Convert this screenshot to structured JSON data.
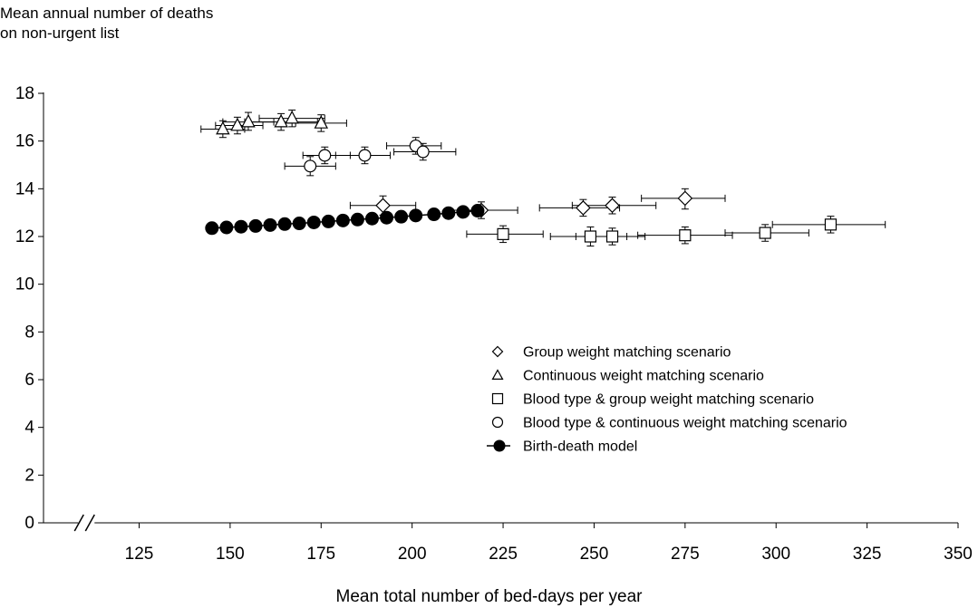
{
  "chart_data": {
    "type": "scatter",
    "title": "",
    "ylabel_lines": [
      "Mean annual number of deaths",
      "on non-urgent list"
    ],
    "xlabel": "Mean total number of bed-days per year",
    "xlim": [
      105,
      350
    ],
    "ylim": [
      0,
      18
    ],
    "x_ticks": [
      125,
      150,
      175,
      200,
      225,
      250,
      275,
      300,
      325,
      350
    ],
    "y_ticks": [
      0,
      2,
      4,
      6,
      8,
      10,
      12,
      14,
      16,
      18
    ],
    "axis_break": "x",
    "grid": false,
    "legend_position": "bottom-right",
    "series": [
      {
        "name": "Group weight matching scenario",
        "marker": "diamond",
        "points": [
          {
            "x": 192,
            "y": 13.3,
            "xerr": [
              183,
              201
            ],
            "yerr": [
              12.9,
              13.7
            ]
          },
          {
            "x": 219,
            "y": 13.1,
            "xerr": [
              210,
              229
            ],
            "yerr": [
              12.75,
              13.45
            ]
          },
          {
            "x": 247,
            "y": 13.2,
            "xerr": [
              235,
              257
            ],
            "yerr": [
              12.85,
              13.55
            ]
          },
          {
            "x": 255,
            "y": 13.3,
            "xerr": [
              244,
              267
            ],
            "yerr": [
              12.95,
              13.65
            ]
          },
          {
            "x": 275,
            "y": 13.6,
            "xerr": [
              263,
              286
            ],
            "yerr": [
              13.15,
              14.0
            ]
          }
        ]
      },
      {
        "name": "Continuous weight matching scenario",
        "marker": "triangle",
        "points": [
          {
            "x": 148,
            "y": 16.5,
            "xerr": [
              142,
              154
            ],
            "yerr": [
              16.15,
              16.85
            ]
          },
          {
            "x": 152,
            "y": 16.65,
            "xerr": [
              146,
              159
            ],
            "yerr": [
              16.3,
              17.0
            ]
          },
          {
            "x": 155,
            "y": 16.8,
            "xerr": [
              148,
              162
            ],
            "yerr": [
              16.45,
              17.2
            ]
          },
          {
            "x": 164,
            "y": 16.8,
            "xerr": [
              154,
              174
            ],
            "yerr": [
              16.45,
              17.15
            ]
          },
          {
            "x": 167,
            "y": 16.95,
            "xerr": [
              158,
              176
            ],
            "yerr": [
              16.6,
              17.3
            ]
          },
          {
            "x": 175,
            "y": 16.75,
            "xerr": [
              168,
              182
            ],
            "yerr": [
              16.4,
              17.1
            ]
          }
        ]
      },
      {
        "name": "Blood type & group weight matching scenario",
        "marker": "square",
        "points": [
          {
            "x": 225,
            "y": 12.1,
            "xerr": [
              215,
              236
            ],
            "yerr": [
              11.75,
              12.45
            ]
          },
          {
            "x": 249,
            "y": 12.0,
            "xerr": [
              238,
              259
            ],
            "yerr": [
              11.6,
              12.4
            ]
          },
          {
            "x": 255,
            "y": 12.0,
            "xerr": [
              245,
              264
            ],
            "yerr": [
              11.65,
              12.35
            ]
          },
          {
            "x": 275,
            "y": 12.05,
            "xerr": [
              262,
              288
            ],
            "yerr": [
              11.7,
              12.4
            ]
          },
          {
            "x": 297,
            "y": 12.15,
            "xerr": [
              286,
              309
            ],
            "yerr": [
              11.8,
              12.5
            ]
          },
          {
            "x": 315,
            "y": 12.5,
            "xerr": [
              299,
              330
            ],
            "yerr": [
              12.15,
              12.85
            ]
          }
        ]
      },
      {
        "name": "Blood type & continuous weight matching scenario",
        "marker": "circle",
        "points": [
          {
            "x": 172,
            "y": 14.95,
            "xerr": [
              165,
              179
            ],
            "yerr": [
              14.55,
              15.35
            ]
          },
          {
            "x": 176,
            "y": 15.4,
            "xerr": [
              170,
              183
            ],
            "yerr": [
              15.05,
              15.75
            ]
          },
          {
            "x": 187,
            "y": 15.4,
            "xerr": [
              179,
              194
            ],
            "yerr": [
              15.05,
              15.75
            ]
          },
          {
            "x": 201,
            "y": 15.8,
            "xerr": [
              193,
              208
            ],
            "yerr": [
              15.45,
              16.15
            ]
          },
          {
            "x": 203,
            "y": 15.55,
            "xerr": [
              195,
              212
            ],
            "yerr": [
              15.2,
              15.9
            ]
          }
        ]
      },
      {
        "name": "Birth-death model",
        "marker": "filled-circle-line",
        "points": [
          {
            "x": 145,
            "y": 12.35
          },
          {
            "x": 149,
            "y": 12.38
          },
          {
            "x": 153,
            "y": 12.41
          },
          {
            "x": 157,
            "y": 12.44
          },
          {
            "x": 161,
            "y": 12.48
          },
          {
            "x": 165,
            "y": 12.52
          },
          {
            "x": 169,
            "y": 12.55
          },
          {
            "x": 173,
            "y": 12.59
          },
          {
            "x": 177,
            "y": 12.63
          },
          {
            "x": 181,
            "y": 12.67
          },
          {
            "x": 185,
            "y": 12.71
          },
          {
            "x": 189,
            "y": 12.75
          },
          {
            "x": 193,
            "y": 12.79
          },
          {
            "x": 197,
            "y": 12.83
          },
          {
            "x": 201,
            "y": 12.88
          },
          {
            "x": 206,
            "y": 12.93
          },
          {
            "x": 210,
            "y": 12.98
          },
          {
            "x": 214,
            "y": 13.03
          },
          {
            "x": 218,
            "y": 13.08
          }
        ]
      }
    ]
  }
}
